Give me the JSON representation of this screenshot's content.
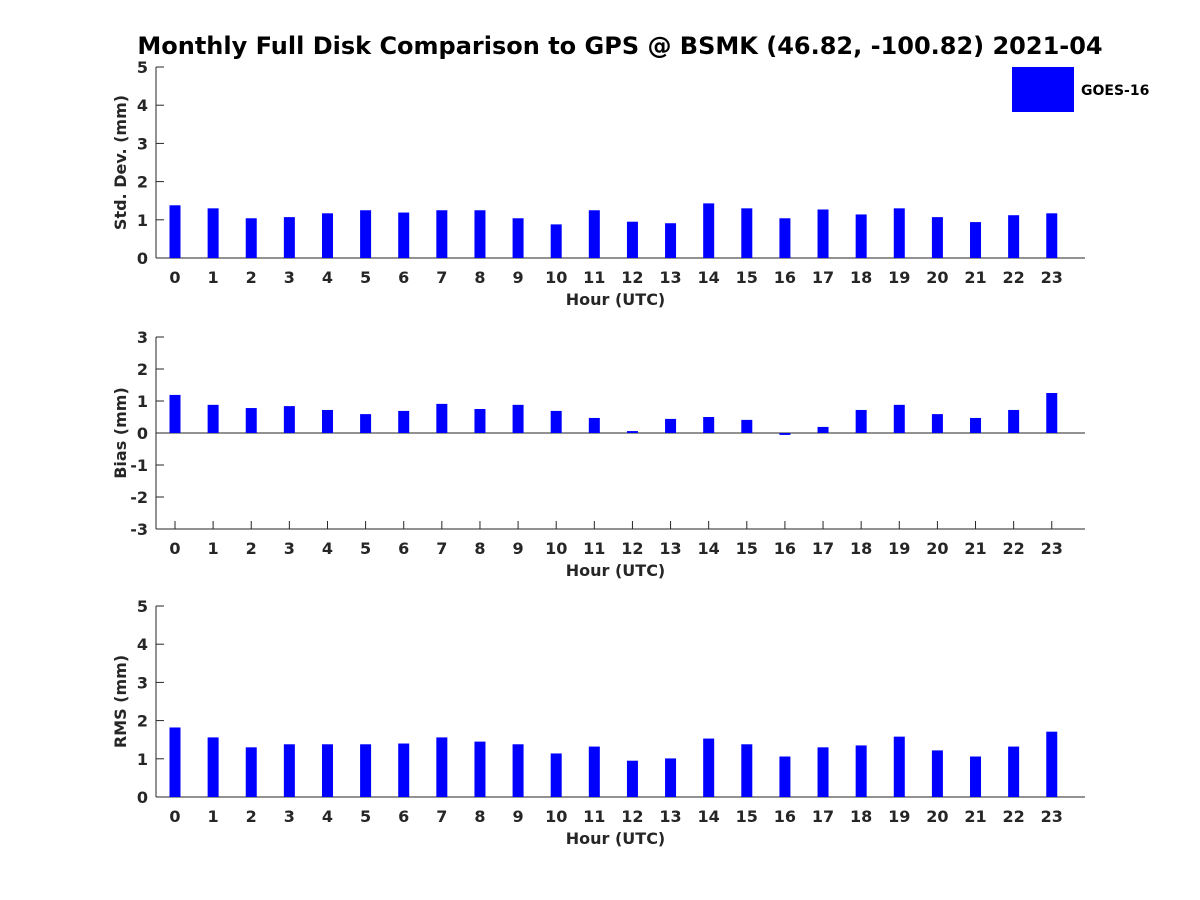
{
  "title": "Monthly Full Disk Comparison to GPS @ BSMK (46.82, -100.82) 2021-04",
  "colors": {
    "bar": "#0000ff",
    "axis": "#262626"
  },
  "legend": {
    "label": "GOES-16",
    "placement": "top-right"
  },
  "chart_data": [
    {
      "type": "bar",
      "name": "std",
      "xlabel": "Hour (UTC)",
      "ylabel": "Std. Dev. (mm)",
      "ylim": [
        0,
        5
      ],
      "yticks": [
        "0",
        "1",
        "2",
        "3",
        "4",
        "5"
      ],
      "categories": [
        "0",
        "1",
        "2",
        "3",
        "4",
        "5",
        "6",
        "7",
        "8",
        "9",
        "10",
        "11",
        "12",
        "13",
        "14",
        "15",
        "16",
        "17",
        "18",
        "19",
        "20",
        "21",
        "22",
        "23"
      ],
      "series": [
        {
          "name": "GOES-16",
          "values": [
            1.38,
            1.3,
            1.04,
            1.07,
            1.17,
            1.25,
            1.19,
            1.25,
            1.25,
            1.04,
            0.88,
            1.25,
            0.95,
            0.91,
            1.43,
            1.3,
            1.04,
            1.27,
            1.14,
            1.3,
            1.07,
            0.94,
            1.12,
            1.17
          ]
        }
      ],
      "grid": false
    },
    {
      "type": "bar",
      "name": "bias",
      "xlabel": "Hour (UTC)",
      "ylabel": "Bias (mm)",
      "ylim": [
        -3,
        3
      ],
      "yticks": [
        "-3",
        "-2",
        "-1",
        "0",
        "1",
        "2",
        "3"
      ],
      "categories": [
        "0",
        "1",
        "2",
        "3",
        "4",
        "5",
        "6",
        "7",
        "8",
        "9",
        "10",
        "11",
        "12",
        "13",
        "14",
        "15",
        "16",
        "17",
        "18",
        "19",
        "20",
        "21",
        "22",
        "23"
      ],
      "series": [
        {
          "name": "GOES-16",
          "values": [
            1.19,
            0.88,
            0.78,
            0.84,
            0.72,
            0.59,
            0.69,
            0.91,
            0.75,
            0.88,
            0.69,
            0.47,
            0.06,
            0.44,
            0.5,
            0.41,
            -0.06,
            0.19,
            0.72,
            0.88,
            0.59,
            0.47,
            0.72,
            1.25
          ]
        }
      ],
      "grid": false
    },
    {
      "type": "bar",
      "name": "rms",
      "xlabel": "Hour (UTC)",
      "ylabel": "RMS (mm)",
      "ylim": [
        0,
        5
      ],
      "yticks": [
        "0",
        "1",
        "2",
        "3",
        "4",
        "5"
      ],
      "categories": [
        "0",
        "1",
        "2",
        "3",
        "4",
        "5",
        "6",
        "7",
        "8",
        "9",
        "10",
        "11",
        "12",
        "13",
        "14",
        "15",
        "16",
        "17",
        "18",
        "19",
        "20",
        "21",
        "22",
        "23"
      ],
      "series": [
        {
          "name": "GOES-16",
          "values": [
            1.82,
            1.56,
            1.3,
            1.38,
            1.38,
            1.38,
            1.4,
            1.56,
            1.45,
            1.38,
            1.14,
            1.32,
            0.95,
            1.01,
            1.53,
            1.38,
            1.06,
            1.3,
            1.35,
            1.58,
            1.22,
            1.06,
            1.32,
            1.71
          ]
        }
      ],
      "grid": false
    }
  ]
}
